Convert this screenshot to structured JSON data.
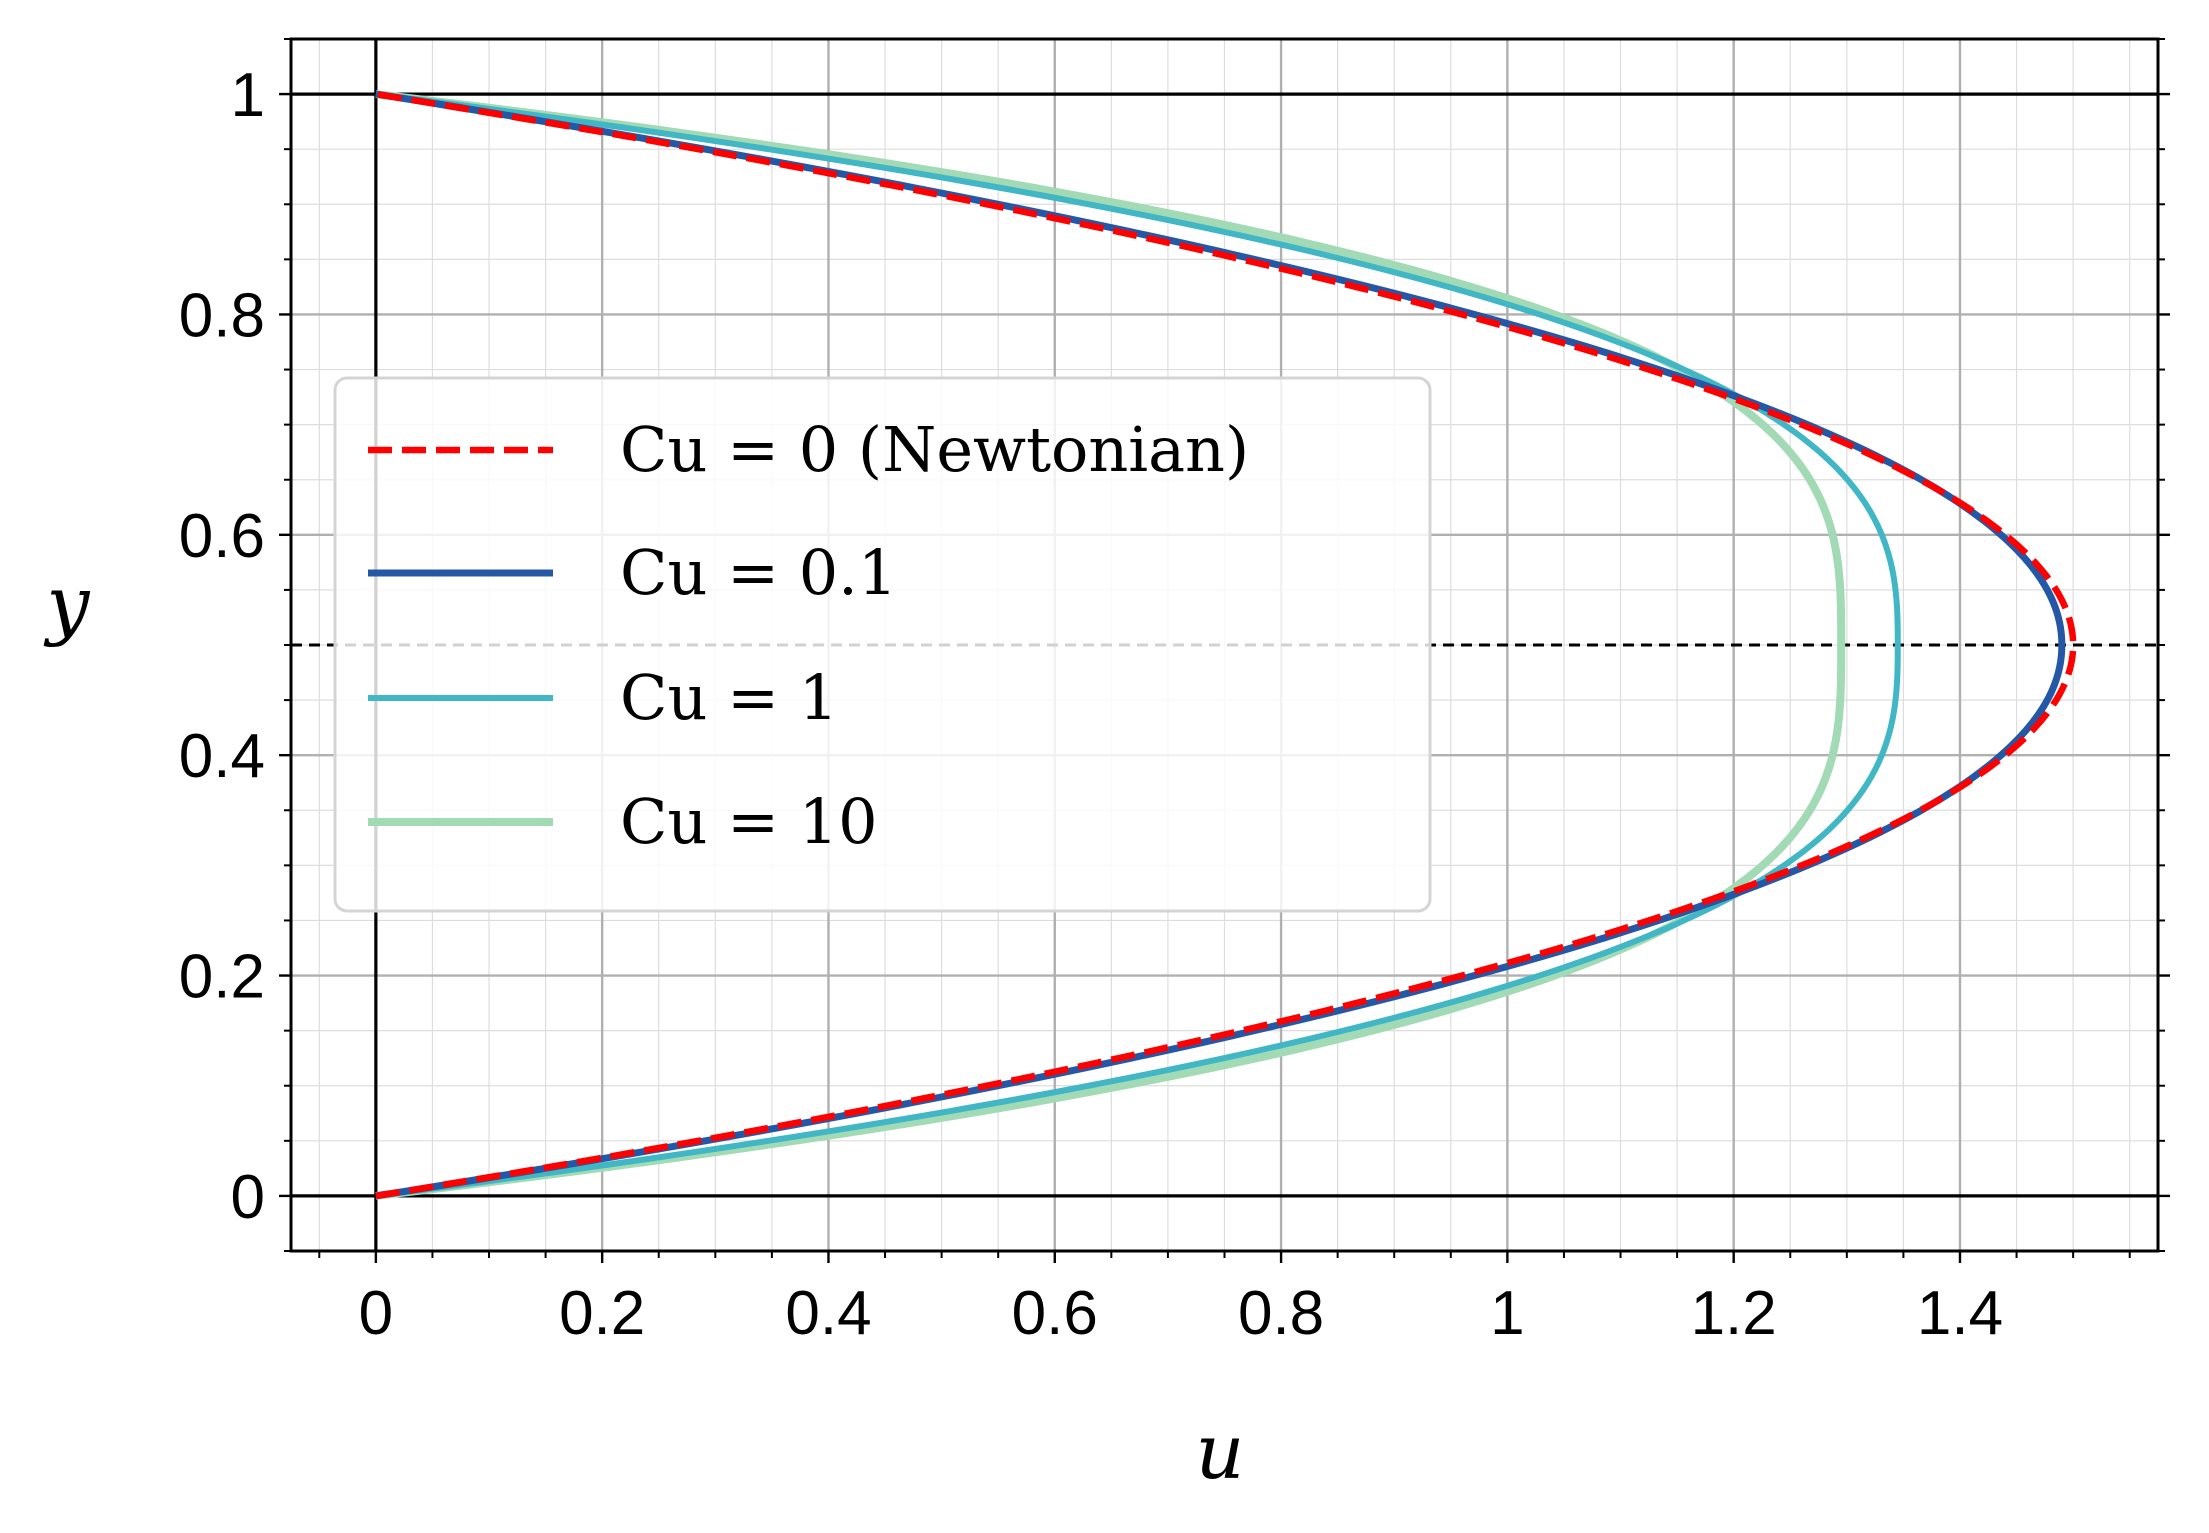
{
  "chart_data": {
    "type": "line",
    "title": "",
    "xlabel": "u",
    "ylabel": "y",
    "xlim": [
      -0.075,
      1.575
    ],
    "ylim": [
      -0.05,
      1.05
    ],
    "x_ticks": [
      0,
      0.2,
      0.4,
      0.6,
      0.8,
      1,
      1.2,
      1.4
    ],
    "x_tick_labels": [
      "0",
      "0.2",
      "0.4",
      "0.6",
      "0.8",
      "1",
      "1.2",
      "1.4"
    ],
    "y_ticks": [
      0,
      0.2,
      0.4,
      0.6,
      0.8,
      1
    ],
    "y_tick_labels": [
      "0",
      "0.2",
      "0.4",
      "0.6",
      "0.8",
      "1"
    ],
    "grid": true,
    "minor_grid": true,
    "reference_lines": {
      "y": [
        0,
        0.5,
        1
      ],
      "x": [
        0
      ]
    },
    "legend_position": "center-left",
    "series": [
      {
        "name": "Cu = 0 (Newtonian)",
        "color": "#ff0000",
        "style": "dashed",
        "u_max": 1.5,
        "y": [
          0,
          0.1,
          0.2,
          0.3,
          0.4,
          0.5,
          0.6,
          0.7,
          0.8,
          0.9,
          1
        ],
        "u": [
          0,
          0.54,
          0.96,
          1.26,
          1.44,
          1.5,
          1.44,
          1.26,
          0.96,
          0.54,
          0
        ]
      },
      {
        "name": "Cu = 0.1",
        "color": "#2458a6",
        "style": "solid",
        "u_max": 1.49,
        "y": [
          0,
          0.1,
          0.2,
          0.3,
          0.4,
          0.5,
          0.6,
          0.7,
          0.8,
          0.9,
          1
        ],
        "u": [
          0,
          0.55,
          0.98,
          1.27,
          1.44,
          1.49,
          1.44,
          1.27,
          0.98,
          0.55,
          0
        ]
      },
      {
        "name": "Cu = 1",
        "color": "#41b6c4",
        "style": "solid",
        "u_max": 1.345,
        "y": [
          0,
          0.1,
          0.2,
          0.3,
          0.4,
          0.5,
          0.6,
          0.7,
          0.8,
          0.9,
          1
        ],
        "u": [
          0,
          0.63,
          1.05,
          1.28,
          1.34,
          1.345,
          1.34,
          1.28,
          1.05,
          0.63,
          0
        ]
      },
      {
        "name": "Cu = 10",
        "color": "#a1dab4",
        "style": "solid",
        "u_max": 1.295,
        "y": [
          0,
          0.1,
          0.2,
          0.3,
          0.4,
          0.5,
          0.6,
          0.7,
          0.8,
          0.9,
          1
        ],
        "u": [
          0,
          0.66,
          1.08,
          1.27,
          1.294,
          1.295,
          1.294,
          1.27,
          1.08,
          0.66,
          0
        ]
      }
    ]
  }
}
